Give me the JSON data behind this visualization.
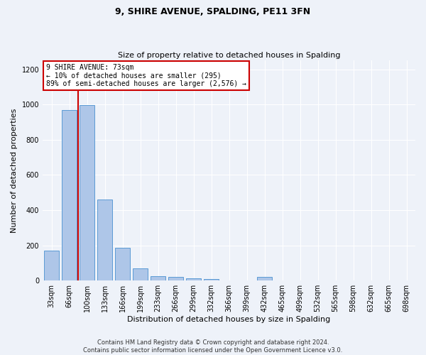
{
  "title1": "9, SHIRE AVENUE, SPALDING, PE11 3FN",
  "title2": "Size of property relative to detached houses in Spalding",
  "xlabel": "Distribution of detached houses by size in Spalding",
  "ylabel": "Number of detached properties",
  "footer_line1": "Contains HM Land Registry data © Crown copyright and database right 2024.",
  "footer_line2": "Contains public sector information licensed under the Open Government Licence v3.0.",
  "categories": [
    "33sqm",
    "66sqm",
    "100sqm",
    "133sqm",
    "166sqm",
    "199sqm",
    "233sqm",
    "266sqm",
    "299sqm",
    "332sqm",
    "366sqm",
    "399sqm",
    "432sqm",
    "465sqm",
    "499sqm",
    "532sqm",
    "565sqm",
    "598sqm",
    "632sqm",
    "665sqm",
    "698sqm"
  ],
  "values": [
    170,
    970,
    995,
    460,
    185,
    70,
    25,
    20,
    13,
    10,
    0,
    0,
    22,
    0,
    0,
    0,
    0,
    0,
    0,
    0,
    0
  ],
  "bar_color": "#aec6e8",
  "bar_edge_color": "#5b9bd5",
  "annotation_line1": "9 SHIRE AVENUE: 73sqm",
  "annotation_line2": "← 10% of detached houses are smaller (295)",
  "annotation_line3": "89% of semi-detached houses are larger (2,576) →",
  "annotation_box_color": "#ffffff",
  "annotation_box_edge_color": "#cc0000",
  "line_color": "#cc0000",
  "red_line_x": 1.5,
  "ylim": [
    0,
    1250
  ],
  "yticks": [
    0,
    200,
    400,
    600,
    800,
    1000,
    1200
  ],
  "bg_color": "#eef2f9",
  "grid_color": "#ffffff",
  "title1_fontsize": 9,
  "title2_fontsize": 8,
  "ylabel_fontsize": 8,
  "xlabel_fontsize": 8,
  "tick_fontsize": 7,
  "footer_fontsize": 6
}
